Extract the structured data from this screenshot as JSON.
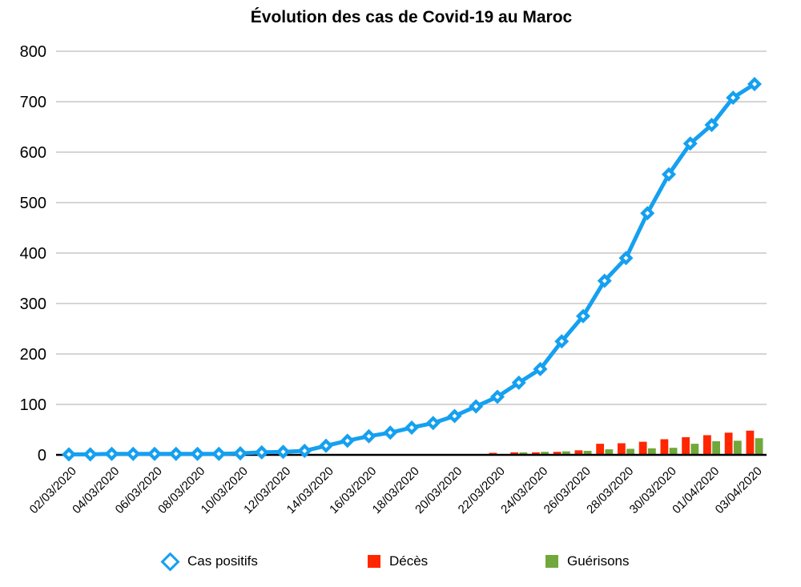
{
  "chart_data": {
    "type": "combo-line-bar",
    "title": "Évolution des cas de Covid-19 au Maroc",
    "xlabel": "",
    "ylabel": "",
    "ylim": [
      0,
      800
    ],
    "y_ticks": [
      0,
      100,
      200,
      300,
      400,
      500,
      600,
      700,
      800
    ],
    "grid": "horizontal-gray",
    "legend_position": "bottom",
    "x": [
      "02/03/2020",
      "03/03/2020",
      "04/03/2020",
      "05/03/2020",
      "06/03/2020",
      "07/03/2020",
      "08/03/2020",
      "09/03/2020",
      "10/03/2020",
      "11/03/2020",
      "12/03/2020",
      "13/03/2020",
      "14/03/2020",
      "15/03/2020",
      "16/03/2020",
      "17/03/2020",
      "18/03/2020",
      "19/03/2020",
      "20/03/2020",
      "21/03/2020",
      "22/03/2020",
      "23/03/2020",
      "24/03/2020",
      "25/03/2020",
      "26/03/2020",
      "27/03/2020",
      "28/03/2020",
      "29/03/2020",
      "30/03/2020",
      "31/03/2020",
      "01/04/2020",
      "02/04/2020",
      "03/04/2020"
    ],
    "x_tick_labels": [
      "02/03/2020",
      "04/03/2020",
      "06/03/2020",
      "08/03/2020",
      "10/03/2020",
      "12/03/2020",
      "14/03/2020",
      "16/03/2020",
      "18/03/2020",
      "20/03/2020",
      "22/03/2020",
      "24/03/2020",
      "26/03/2020",
      "28/03/2020",
      "30/03/2020",
      "01/04/2020",
      "03/04/2020"
    ],
    "series": [
      {
        "name": "Cas positifs",
        "type": "line",
        "marker": "diamond-outline",
        "color": "#15A0F0",
        "values": [
          1,
          1,
          2,
          2,
          2,
          2,
          2,
          2,
          3,
          5,
          6,
          8,
          18,
          28,
          37,
          44,
          54,
          63,
          77,
          96,
          115,
          143,
          170,
          225,
          275,
          345,
          390,
          479,
          556,
          617,
          654,
          708,
          735
        ]
      },
      {
        "name": "Décès",
        "type": "bar",
        "color": "#FF2600",
        "values": [
          0,
          0,
          0,
          0,
          0,
          0,
          0,
          0,
          0,
          0,
          0,
          0,
          0,
          0,
          0,
          0,
          0,
          0,
          0,
          0,
          4,
          5,
          5,
          6,
          9,
          22,
          23,
          26,
          31,
          35,
          39,
          44,
          48
        ]
      },
      {
        "name": "Guérisons",
        "type": "bar",
        "color": "#70A83B",
        "values": [
          0,
          0,
          0,
          0,
          0,
          0,
          0,
          0,
          0,
          0,
          0,
          0,
          0,
          0,
          0,
          0,
          0,
          0,
          0,
          0,
          0,
          5,
          6,
          7,
          8,
          11,
          12,
          13,
          14,
          22,
          27,
          28,
          33
        ]
      }
    ],
    "colors": {
      "line_blue": "#15A0F0",
      "bar_red": "#FF2600",
      "bar_green": "#70A83B",
      "gridline_gray": "#c7c7c7",
      "axis_black": "#000000"
    }
  }
}
